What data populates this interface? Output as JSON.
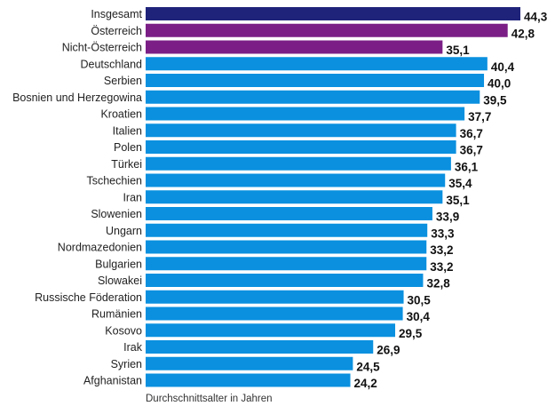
{
  "chart_data": {
    "type": "bar",
    "orientation": "horizontal",
    "categories": [
      "Insgesamt",
      "Österreich",
      "Nicht-Österreich",
      "Deutschland",
      "Serbien",
      "Bosnien und Herzegowina",
      "Kroatien",
      "Italien",
      "Polen",
      "Türkei",
      "Tschechien",
      "Iran",
      "Slowenien",
      "Ungarn",
      "Nordmazedonien",
      "Bulgarien",
      "Slowakei",
      "Russische Föderation",
      "Rumänien",
      "Kosovo",
      "Irak",
      "Syrien",
      "Afghanistan"
    ],
    "values": [
      44.3,
      42.8,
      35.1,
      40.4,
      40.0,
      39.5,
      37.7,
      36.7,
      36.7,
      36.1,
      35.4,
      35.1,
      33.9,
      33.3,
      33.2,
      33.2,
      32.8,
      30.5,
      30.4,
      29.5,
      26.9,
      24.5,
      24.2
    ],
    "value_labels": [
      "44,3",
      "42,8",
      "35,1",
      "40,4",
      "40,0",
      "39,5",
      "37,7",
      "36,7",
      "36,7",
      "36,1",
      "35,4",
      "35,1",
      "33,9",
      "33,3",
      "33,2",
      "33,2",
      "32,8",
      "30,5",
      "30,4",
      "29,5",
      "26,9",
      "24,5",
      "24,2"
    ],
    "colors": [
      "#1f237a",
      "#7b1f86",
      "#7b1f86",
      "#0a90df",
      "#0a90df",
      "#0a90df",
      "#0a90df",
      "#0a90df",
      "#0a90df",
      "#0a90df",
      "#0a90df",
      "#0a90df",
      "#0a90df",
      "#0a90df",
      "#0a90df",
      "#0a90df",
      "#0a90df",
      "#0a90df",
      "#0a90df",
      "#0a90df",
      "#0a90df",
      "#0a90df",
      "#0a90df"
    ],
    "xlabel": "Durchschnittsalter in Jahren",
    "ylabel": "",
    "title": "",
    "xlim": [
      0,
      44.3
    ],
    "grid": false,
    "legend": "none"
  }
}
